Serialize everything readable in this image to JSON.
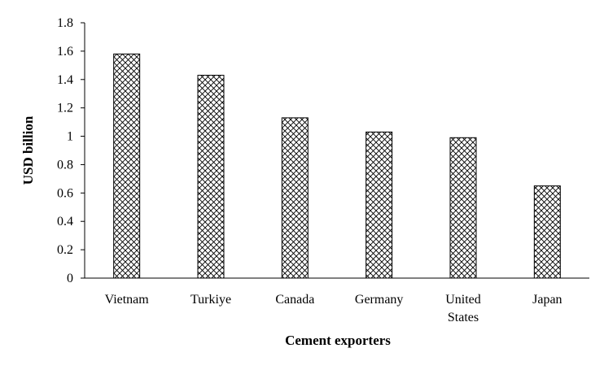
{
  "chart_data": {
    "type": "bar",
    "categories": [
      [
        "Vietnam"
      ],
      [
        "Turkiye"
      ],
      [
        "Canada"
      ],
      [
        "Germany"
      ],
      [
        "United",
        "States"
      ],
      [
        "Japan"
      ]
    ],
    "values": [
      1.58,
      1.43,
      1.13,
      1.03,
      0.99,
      0.65
    ],
    "xlabel": "Cement exporters",
    "ylabel": "USD billion",
    "ylim": [
      0,
      1.8
    ],
    "yticks": [
      "0",
      "0.2",
      "0.4",
      "0.6",
      "0.8",
      "1",
      "1.2",
      "1.4",
      "1.6",
      "1.8"
    ],
    "grid": false,
    "legend": "none",
    "bar_fill": "crosshatch",
    "colors": {
      "bar_stroke": "#000000",
      "hatch": "#000000",
      "background": "#ffffff",
      "axis": "#000000"
    }
  }
}
